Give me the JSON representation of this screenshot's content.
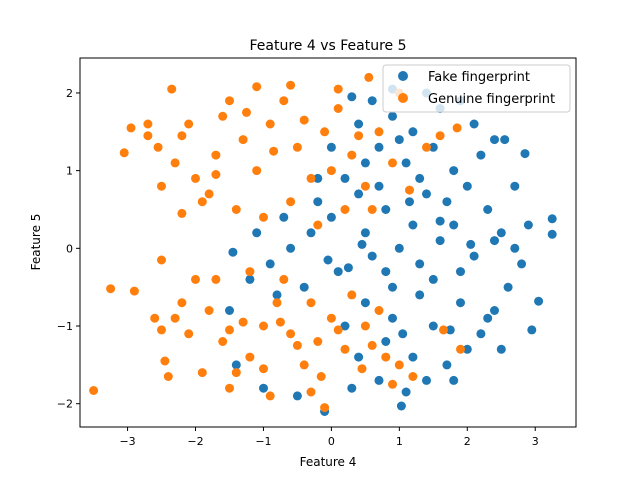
{
  "chart_data": {
    "type": "scatter",
    "title": "Feature 4 vs Feature 5",
    "xlabel": "Feature 4",
    "ylabel": "Feature 5",
    "xlim": [
      -3.7,
      3.6
    ],
    "ylim": [
      -2.3,
      2.45
    ],
    "xticks": [
      -3,
      -2,
      -1,
      0,
      1,
      2,
      3
    ],
    "yticks": [
      -2,
      -1,
      0,
      1,
      2
    ],
    "grid": false,
    "legend_position": "upper right",
    "series": [
      {
        "name": "Fake fingerprint",
        "color": "#1f77b4",
        "points": [
          [
            0.4,
            1.6
          ],
          [
            0.6,
            1.9
          ],
          [
            0.9,
            1.7
          ],
          [
            1.2,
            1.5
          ],
          [
            1.5,
            1.3
          ],
          [
            1.8,
            1.0
          ],
          [
            2.0,
            0.8
          ],
          [
            2.2,
            1.2
          ],
          [
            2.4,
            1.4
          ],
          [
            2.1,
            1.6
          ],
          [
            1.6,
            1.8
          ],
          [
            1.0,
            1.4
          ],
          [
            0.5,
            1.1
          ],
          [
            1.3,
            0.9
          ],
          [
            1.7,
            0.6
          ],
          [
            2.3,
            0.5
          ],
          [
            2.5,
            0.2
          ],
          [
            2.7,
            0.0
          ],
          [
            2.9,
            0.3
          ],
          [
            3.25,
            0.38
          ],
          [
            3.25,
            0.18
          ],
          [
            2.8,
            -0.2
          ],
          [
            2.6,
            -0.5
          ],
          [
            2.4,
            -0.8
          ],
          [
            2.2,
            -1.1
          ],
          [
            2.0,
            -1.3
          ],
          [
            1.7,
            -1.5
          ],
          [
            1.4,
            -1.7
          ],
          [
            1.1,
            -1.85
          ],
          [
            1.03,
            -2.03
          ],
          [
            0.7,
            -1.7
          ],
          [
            0.4,
            -1.4
          ],
          [
            0.2,
            -1.0
          ],
          [
            0.5,
            -0.7
          ],
          [
            0.9,
            -0.5
          ],
          [
            1.3,
            -0.2
          ],
          [
            1.6,
            0.1
          ],
          [
            1.2,
            0.3
          ],
          [
            0.8,
            0.5
          ],
          [
            0.4,
            0.7
          ],
          [
            0.0,
            0.4
          ],
          [
            -0.3,
            0.2
          ],
          [
            -0.6,
            0.0
          ],
          [
            -0.9,
            -0.2
          ],
          [
            -1.2,
            -0.4
          ],
          [
            -0.8,
            -0.6
          ],
          [
            -0.4,
            -0.5
          ],
          [
            0.1,
            -0.3
          ],
          [
            0.6,
            -0.1
          ],
          [
            1.0,
            0.0
          ],
          [
            1.5,
            -0.4
          ],
          [
            1.9,
            -0.7
          ],
          [
            2.3,
            -0.9
          ],
          [
            2.95,
            -1.05
          ],
          [
            3.05,
            -0.68
          ],
          [
            2.5,
            -1.3
          ],
          [
            1.8,
            -1.7
          ],
          [
            1.2,
            -1.4
          ],
          [
            0.8,
            -1.2
          ],
          [
            0.3,
            -1.8
          ],
          [
            -0.1,
            -2.1
          ],
          [
            -0.5,
            -1.9
          ],
          [
            -1.0,
            -1.8
          ],
          [
            -1.4,
            -1.5
          ],
          [
            -1.5,
            -0.8
          ],
          [
            -1.45,
            -0.05
          ],
          [
            -1.1,
            0.2
          ],
          [
            -0.7,
            0.4
          ],
          [
            -0.2,
            0.6
          ],
          [
            0.2,
            0.9
          ],
          [
            0.7,
            1.3
          ],
          [
            1.1,
            1.1
          ],
          [
            1.4,
            0.7
          ],
          [
            1.8,
            0.3
          ],
          [
            2.1,
            -0.1
          ],
          [
            2.4,
            0.1
          ],
          [
            2.85,
            1.22
          ],
          [
            2.55,
            1.4
          ],
          [
            1.9,
            1.9
          ],
          [
            1.4,
            2.0
          ],
          [
            0.9,
            2.05
          ],
          [
            0.3,
            1.95
          ],
          [
            0.0,
            1.3
          ],
          [
            -0.2,
            0.9
          ],
          [
            0.5,
            0.2
          ],
          [
            0.9,
            -0.9
          ],
          [
            1.5,
            -1.0
          ],
          [
            1.9,
            -0.3
          ],
          [
            2.7,
            0.8
          ],
          [
            0.25,
            -0.25
          ],
          [
            0.7,
            0.8
          ],
          [
            1.15,
            0.6
          ],
          [
            1.6,
            0.35
          ],
          [
            2.05,
            0.05
          ],
          [
            1.3,
            -0.6
          ],
          [
            0.8,
            -0.3
          ],
          [
            0.45,
            0.05
          ],
          [
            -0.05,
            -0.15
          ],
          [
            1.05,
            -1.1
          ],
          [
            1.75,
            -1.05
          ]
        ]
      },
      {
        "name": "Genuine fingerprint",
        "color": "#ff7f0e",
        "points": [
          [
            -3.5,
            -1.83
          ],
          [
            -3.25,
            -0.52
          ],
          [
            -2.9,
            -0.55
          ],
          [
            -2.6,
            -0.9
          ],
          [
            -2.5,
            -1.05
          ],
          [
            -2.45,
            -1.45
          ],
          [
            -2.4,
            -1.65
          ],
          [
            -2.5,
            -0.15
          ],
          [
            -2.2,
            -0.7
          ],
          [
            -2.0,
            -0.4
          ],
          [
            -1.8,
            -0.8
          ],
          [
            -1.6,
            -1.2
          ],
          [
            -1.4,
            -1.6
          ],
          [
            -1.2,
            -1.4
          ],
          [
            -1.0,
            -1.0
          ],
          [
            -0.8,
            -0.7
          ],
          [
            -0.6,
            -1.1
          ],
          [
            -0.4,
            -1.5
          ],
          [
            -0.2,
            -1.2
          ],
          [
            0.0,
            -0.9
          ],
          [
            0.2,
            -1.3
          ],
          [
            0.5,
            -1.0
          ],
          [
            0.8,
            -1.4
          ],
          [
            1.0,
            -1.5
          ],
          [
            1.2,
            -1.65
          ],
          [
            -0.1,
            -2.05
          ],
          [
            -0.3,
            -1.85
          ],
          [
            -0.9,
            -1.9
          ],
          [
            -1.5,
            -1.8
          ],
          [
            -1.9,
            -1.6
          ],
          [
            -2.1,
            -1.1
          ],
          [
            -1.7,
            -0.4
          ],
          [
            -1.2,
            -0.3
          ],
          [
            -0.7,
            -0.4
          ],
          [
            -0.3,
            -0.7
          ],
          [
            0.3,
            -0.6
          ],
          [
            0.7,
            -0.8
          ],
          [
            1.9,
            -1.3
          ],
          [
            1.65,
            -1.05
          ],
          [
            0.9,
            -1.75
          ],
          [
            -3.05,
            1.23
          ],
          [
            -2.95,
            1.55
          ],
          [
            -2.7,
            1.45
          ],
          [
            -2.7,
            1.6
          ],
          [
            -2.55,
            1.3
          ],
          [
            -2.35,
            2.05
          ],
          [
            -2.3,
            1.1
          ],
          [
            -2.1,
            1.6
          ],
          [
            -2.0,
            0.9
          ],
          [
            -1.9,
            0.6
          ],
          [
            -1.7,
            1.2
          ],
          [
            -1.6,
            1.7
          ],
          [
            -1.5,
            1.9
          ],
          [
            -1.3,
            1.4
          ],
          [
            -1.1,
            1.0
          ],
          [
            -0.9,
            1.6
          ],
          [
            -0.7,
            1.9
          ],
          [
            -0.5,
            1.3
          ],
          [
            -0.3,
            0.9
          ],
          [
            -0.1,
            1.5
          ],
          [
            0.1,
            1.8
          ],
          [
            0.3,
            1.2
          ],
          [
            0.5,
            0.8
          ],
          [
            0.7,
            1.5
          ],
          [
            0.9,
            1.1
          ],
          [
            1.0,
            2.0
          ],
          [
            0.55,
            2.2
          ],
          [
            0.1,
            2.05
          ],
          [
            -0.6,
            2.1
          ],
          [
            -1.1,
            2.08
          ],
          [
            -1.4,
            0.5
          ],
          [
            -1.0,
            0.4
          ],
          [
            -0.6,
            0.6
          ],
          [
            -0.2,
            0.3
          ],
          [
            0.2,
            0.5
          ],
          [
            0.6,
            0.5
          ],
          [
            -2.2,
            0.45
          ],
          [
            -1.8,
            0.7
          ],
          [
            1.4,
            1.3
          ],
          [
            1.6,
            1.45
          ],
          [
            1.85,
            1.55
          ],
          [
            1.15,
            0.75
          ],
          [
            -2.2,
            1.45
          ],
          [
            -2.5,
            0.8
          ],
          [
            -1.7,
            0.95
          ],
          [
            -1.25,
            1.75
          ],
          [
            -0.85,
            1.25
          ],
          [
            -0.4,
            1.65
          ],
          [
            0.0,
            1.0
          ],
          [
            0.4,
            1.45
          ],
          [
            -1.5,
            -1.05
          ],
          [
            -1.0,
            -1.55
          ],
          [
            -0.5,
            -1.25
          ],
          [
            0.1,
            -1.05
          ],
          [
            0.45,
            -1.55
          ],
          [
            -2.3,
            -0.9
          ],
          [
            -1.3,
            -0.95
          ],
          [
            -0.75,
            -0.95
          ],
          [
            -0.15,
            -1.65
          ],
          [
            0.6,
            -1.25
          ]
        ]
      }
    ]
  }
}
